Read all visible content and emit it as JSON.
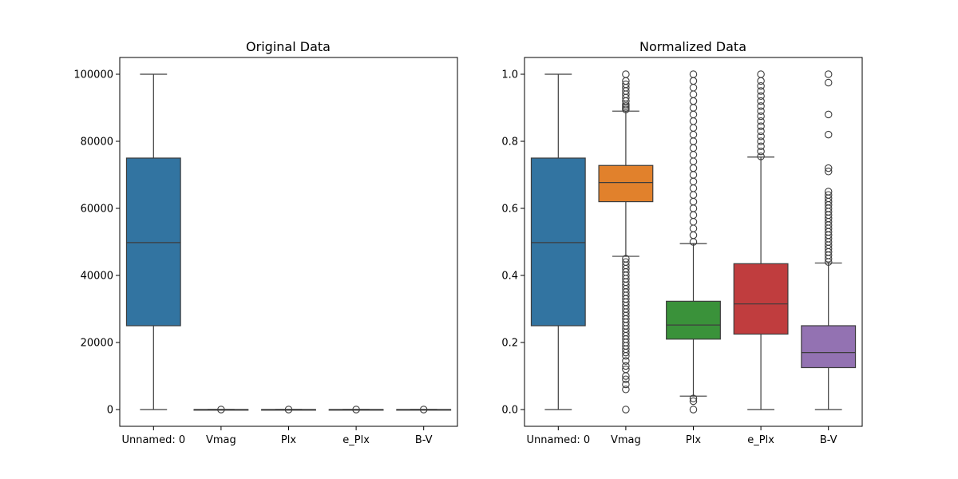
{
  "chart_data": [
    {
      "type": "box",
      "title": "Original Data",
      "xlabel": "",
      "ylabel": "",
      "categories": [
        "Unnamed: 0",
        "Vmag",
        "Plx",
        "e_Plx",
        "B-V"
      ],
      "ylim": [
        -5000,
        105000
      ],
      "yticks": [
        0,
        20000,
        40000,
        60000,
        80000,
        100000
      ],
      "ytick_labels": [
        "0",
        "20000",
        "40000",
        "60000",
        "80000",
        "100000"
      ],
      "grid": false,
      "boxes": [
        {
          "category": "Unnamed: 0",
          "color": "#3274a1",
          "whisker_low": 0,
          "q1": 25000,
          "median": 49800,
          "q3": 75000,
          "whisker_high": 100000,
          "outliers": []
        },
        {
          "category": "Vmag",
          "color": "#e1812c",
          "whisker_low": 0,
          "q1": 0,
          "median": 0,
          "q3": 0,
          "whisker_high": 0,
          "outliers": [
            0
          ]
        },
        {
          "category": "Plx",
          "color": "#3a923a",
          "whisker_low": 0,
          "q1": 0,
          "median": 0,
          "q3": 0,
          "whisker_high": 0,
          "outliers": [
            0
          ]
        },
        {
          "category": "e_Plx",
          "color": "#c03d3e",
          "whisker_low": 0,
          "q1": 0,
          "median": 0,
          "q3": 0,
          "whisker_high": 0,
          "outliers": [
            0
          ]
        },
        {
          "category": "B-V",
          "color": "#9372b2",
          "whisker_low": 0,
          "q1": 0,
          "median": 0,
          "q3": 0,
          "whisker_high": 0,
          "outliers": [
            0
          ]
        }
      ]
    },
    {
      "type": "box",
      "title": "Normalized Data",
      "xlabel": "",
      "ylabel": "",
      "categories": [
        "Unnamed: 0",
        "Vmag",
        "Plx",
        "e_Plx",
        "B-V"
      ],
      "ylim": [
        -0.05,
        1.05
      ],
      "yticks": [
        0.0,
        0.2,
        0.4,
        0.6,
        0.8,
        1.0
      ],
      "ytick_labels": [
        "0.0",
        "0.2",
        "0.4",
        "0.6",
        "0.8",
        "1.0"
      ],
      "grid": false,
      "boxes": [
        {
          "category": "Unnamed: 0",
          "color": "#3274a1",
          "whisker_low": 0.0,
          "q1": 0.25,
          "median": 0.498,
          "q3": 0.75,
          "whisker_high": 1.0,
          "outliers": []
        },
        {
          "category": "Vmag",
          "color": "#e1812c",
          "whisker_low": 0.457,
          "q1": 0.62,
          "median": 0.677,
          "q3": 0.728,
          "whisker_high": 0.89,
          "outliers": [
            0.0,
            0.06,
            0.075,
            0.09,
            0.1,
            0.12,
            0.13,
            0.145,
            0.16,
            0.17,
            0.18,
            0.19,
            0.2,
            0.21,
            0.22,
            0.23,
            0.24,
            0.25,
            0.26,
            0.27,
            0.28,
            0.29,
            0.3,
            0.31,
            0.32,
            0.33,
            0.34,
            0.35,
            0.36,
            0.37,
            0.38,
            0.39,
            0.4,
            0.41,
            0.42,
            0.43,
            0.44,
            0.45,
            0.895,
            0.9,
            0.905,
            0.91,
            0.92,
            0.93,
            0.94,
            0.95,
            0.96,
            0.97,
            0.98,
            1.0
          ]
        },
        {
          "category": "Plx",
          "color": "#3a923a",
          "whisker_low": 0.04,
          "q1": 0.21,
          "median": 0.252,
          "q3": 0.323,
          "whisker_high": 0.495,
          "outliers": [
            0.0,
            0.025,
            0.033,
            0.5,
            0.52,
            0.54,
            0.56,
            0.58,
            0.6,
            0.62,
            0.64,
            0.66,
            0.68,
            0.7,
            0.72,
            0.74,
            0.76,
            0.78,
            0.8,
            0.82,
            0.84,
            0.86,
            0.88,
            0.9,
            0.92,
            0.94,
            0.96,
            0.98,
            1.0
          ]
        },
        {
          "category": "e_Plx",
          "color": "#c03d3e",
          "whisker_low": 0.0,
          "q1": 0.225,
          "median": 0.315,
          "q3": 0.435,
          "whisker_high": 0.753,
          "outliers": [
            0.755,
            0.77,
            0.785,
            0.8,
            0.815,
            0.83,
            0.845,
            0.86,
            0.875,
            0.89,
            0.905,
            0.92,
            0.935,
            0.95,
            0.965,
            0.98,
            1.0
          ]
        },
        {
          "category": "B-V",
          "color": "#9372b2",
          "whisker_low": 0.0,
          "q1": 0.125,
          "median": 0.17,
          "q3": 0.25,
          "whisker_high": 0.437,
          "outliers": [
            0.44,
            0.45,
            0.46,
            0.47,
            0.48,
            0.49,
            0.5,
            0.51,
            0.52,
            0.53,
            0.54,
            0.55,
            0.56,
            0.57,
            0.58,
            0.59,
            0.6,
            0.61,
            0.62,
            0.63,
            0.64,
            0.65,
            0.71,
            0.72,
            0.82,
            0.88,
            0.975,
            1.0
          ]
        }
      ]
    }
  ]
}
